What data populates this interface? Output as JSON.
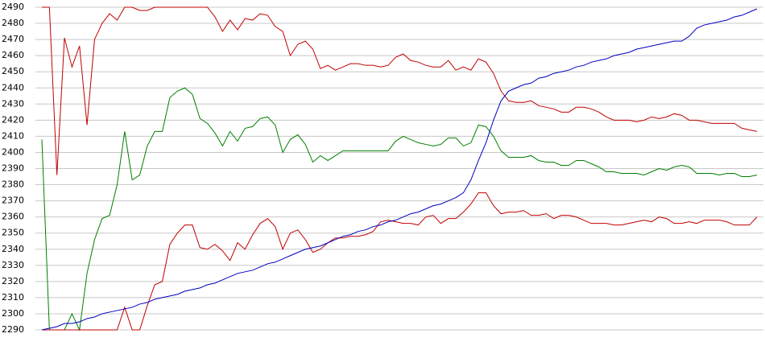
{
  "chart_data": {
    "type": "line",
    "ylim": [
      2290,
      2490
    ],
    "yticks": [
      2290,
      2300,
      2310,
      2320,
      2330,
      2340,
      2350,
      2360,
      2370,
      2380,
      2390,
      2400,
      2410,
      2420,
      2430,
      2440,
      2450,
      2460,
      2470,
      2480,
      2490
    ],
    "grid": true,
    "series": [
      {
        "color": "#c00000",
        "values": [
          2490,
          2490,
          2386,
          2471,
          2453,
          2466,
          2417,
          2470,
          2480,
          2486,
          2482,
          2490,
          2490,
          2488,
          2488,
          2490,
          2490,
          2490,
          2490,
          2490,
          2490,
          2490,
          2490,
          2484,
          2475,
          2482,
          2476,
          2483,
          2482,
          2486,
          2485,
          2478,
          2475,
          2460,
          2467,
          2469,
          2464,
          2452,
          2454,
          2451,
          2453,
          2455,
          2455,
          2454,
          2454,
          2453,
          2454,
          2459,
          2461,
          2457,
          2456,
          2454,
          2453,
          2453,
          2457,
          2451,
          2453,
          2451,
          2458,
          2456,
          2449,
          2438,
          2432,
          2431,
          2431,
          2432,
          2429,
          2428,
          2427,
          2425,
          2425,
          2428,
          2428,
          2427,
          2425,
          2422,
          2420,
          2420,
          2420,
          2419,
          2420,
          2422,
          2421,
          2422,
          2424,
          2423,
          2420,
          2420,
          2419,
          2418,
          2418,
          2418,
          2418,
          2415,
          2414,
          2413
        ]
      },
      {
        "color": "#008000",
        "values": [
          2408,
          2290,
          2290,
          2290,
          2300,
          2290,
          2325,
          2346,
          2359,
          2361,
          2380,
          2413,
          2383,
          2386,
          2404,
          2413,
          2413,
          2434,
          2438,
          2440,
          2436,
          2421,
          2418,
          2412,
          2404,
          2413,
          2407,
          2415,
          2416,
          2421,
          2422,
          2417,
          2400,
          2408,
          2411,
          2405,
          2394,
          2398,
          2395,
          2398,
          2401,
          2401,
          2401,
          2401,
          2401,
          2401,
          2401,
          2407,
          2410,
          2408,
          2406,
          2405,
          2404,
          2405,
          2409,
          2409,
          2404,
          2406,
          2417,
          2416,
          2410,
          2401,
          2397,
          2397,
          2397,
          2398,
          2395,
          2394,
          2394,
          2392,
          2392,
          2395,
          2395,
          2393,
          2391,
          2388,
          2388,
          2387,
          2387,
          2387,
          2386,
          2388,
          2390,
          2389,
          2391,
          2392,
          2391,
          2387,
          2387,
          2387,
          2386,
          2387,
          2387,
          2385,
          2385,
          2386
        ]
      },
      {
        "color": "#c00000",
        "values": [
          2290,
          2290,
          2290,
          2290,
          2290,
          2290,
          2290,
          2290,
          2290,
          2290,
          2290,
          2304,
          2290,
          2290,
          2305,
          2318,
          2320,
          2343,
          2350,
          2355,
          2355,
          2341,
          2340,
          2343,
          2339,
          2333,
          2344,
          2340,
          2349,
          2356,
          2359,
          2354,
          2340,
          2350,
          2352,
          2346,
          2338,
          2340,
          2344,
          2347,
          2347,
          2348,
          2348,
          2349,
          2351,
          2357,
          2358,
          2357,
          2356,
          2356,
          2355,
          2360,
          2361,
          2356,
          2359,
          2359,
          2363,
          2368,
          2375,
          2375,
          2367,
          2362,
          2363,
          2363,
          2364,
          2361,
          2361,
          2362,
          2359,
          2361,
          2361,
          2360,
          2358,
          2356,
          2356,
          2356,
          2355,
          2355,
          2356,
          2357,
          2358,
          2357,
          2360,
          2359,
          2356,
          2356,
          2357,
          2356,
          2358,
          2358,
          2358,
          2357,
          2355,
          2355,
          2355,
          2360
        ]
      },
      {
        "color": "#0000c0",
        "values": [
          2290,
          2291,
          2292,
          2294,
          2294,
          2295,
          2297,
          2298,
          2300,
          2301,
          2302,
          2303,
          2304,
          2306,
          2307,
          2309,
          2310,
          2311,
          2312,
          2314,
          2315,
          2316,
          2318,
          2319,
          2321,
          2323,
          2325,
          2326,
          2327,
          2329,
          2331,
          2332,
          2334,
          2336,
          2338,
          2340,
          2341,
          2342,
          2344,
          2346,
          2348,
          2349,
          2351,
          2352,
          2354,
          2355,
          2357,
          2358,
          2360,
          2362,
          2363,
          2365,
          2367,
          2368,
          2370,
          2372,
          2375,
          2383,
          2395,
          2406,
          2420,
          2432,
          2438,
          2440,
          2442,
          2443,
          2446,
          2447,
          2449,
          2450,
          2451,
          2453,
          2454,
          2456,
          2457,
          2458,
          2460,
          2461,
          2462,
          2464,
          2465,
          2466,
          2467,
          2468,
          2469,
          2469,
          2472,
          2477,
          2479,
          2480,
          2481,
          2482,
          2484,
          2485,
          2487,
          2489
        ]
      }
    ]
  }
}
